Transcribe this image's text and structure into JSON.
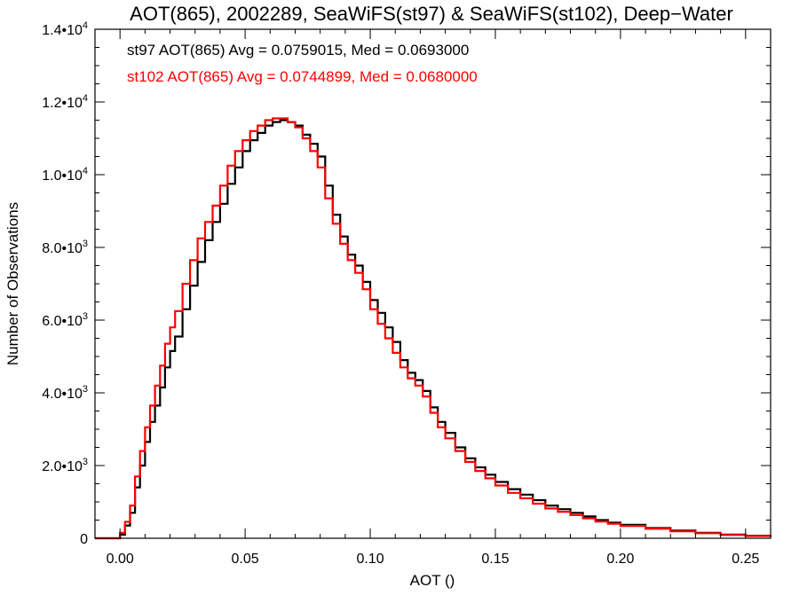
{
  "chart_data": {
    "type": "line",
    "title": "AOT(865), 2002289, SeaWiFS(st97) & SeaWiFS(st102), Deep−Water",
    "xlabel": "AOT ()",
    "ylabel": "Number of Observations",
    "xlim": [
      -0.01,
      0.26
    ],
    "ylim": [
      0,
      14000
    ],
    "grid": false,
    "x_ticks": [
      {
        "value": 0.0,
        "label": "0.00"
      },
      {
        "value": 0.05,
        "label": "0.05"
      },
      {
        "value": 0.1,
        "label": "0.10"
      },
      {
        "value": 0.15,
        "label": "0.15"
      },
      {
        "value": 0.2,
        "label": "0.20"
      },
      {
        "value": 0.25,
        "label": "0.25"
      }
    ],
    "y_ticks": [
      {
        "value": 0,
        "label": "0",
        "exp": ""
      },
      {
        "value": 2000,
        "label": "2.0•1",
        "exp": "3"
      },
      {
        "value": 4000,
        "label": "4.0•1",
        "exp": "3"
      },
      {
        "value": 6000,
        "label": "6.0•1",
        "exp": "3"
      },
      {
        "value": 8000,
        "label": "8.0•1",
        "exp": "3"
      },
      {
        "value": 10000,
        "label": "1.0•1",
        "exp": "4"
      },
      {
        "value": 12000,
        "label": "1.2•1",
        "exp": "4"
      },
      {
        "value": 14000,
        "label": "1.4•1",
        "exp": "4"
      }
    ],
    "series": [
      {
        "color": "#000000",
        "annotation": "st97 AOT(865) Avg = 0.0759015, Med = 0.0693000",
        "x": [
          -0.01,
          -0.001,
          0.0,
          0.002,
          0.004,
          0.006,
          0.008,
          0.01,
          0.012,
          0.014,
          0.016,
          0.018,
          0.02,
          0.022,
          0.025,
          0.028,
          0.031,
          0.034,
          0.037,
          0.04,
          0.043,
          0.046,
          0.049,
          0.052,
          0.055,
          0.058,
          0.061,
          0.064,
          0.067,
          0.07,
          0.073,
          0.076,
          0.079,
          0.082,
          0.085,
          0.088,
          0.091,
          0.094,
          0.097,
          0.1,
          0.103,
          0.106,
          0.109,
          0.112,
          0.115,
          0.118,
          0.121,
          0.124,
          0.127,
          0.13,
          0.134,
          0.138,
          0.142,
          0.146,
          0.15,
          0.155,
          0.16,
          0.165,
          0.17,
          0.175,
          0.18,
          0.185,
          0.19,
          0.195,
          0.2,
          0.21,
          0.22,
          0.23,
          0.24,
          0.25,
          0.26
        ],
        "y": [
          0,
          0,
          100,
          350,
          700,
          1400,
          2000,
          2650,
          3200,
          3650,
          4150,
          4700,
          5150,
          5550,
          6300,
          6950,
          7600,
          8200,
          8700,
          9200,
          9750,
          10200,
          10650,
          10950,
          11150,
          11350,
          11450,
          11500,
          11450,
          11350,
          11100,
          10850,
          10500,
          9700,
          8900,
          8300,
          7800,
          7500,
          7050,
          6550,
          6200,
          5800,
          5400,
          4900,
          4550,
          4350,
          4050,
          3600,
          3200,
          2900,
          2500,
          2200,
          1950,
          1750,
          1550,
          1350,
          1200,
          1050,
          900,
          800,
          700,
          600,
          500,
          430,
          370,
          280,
          210,
          150,
          100,
          70,
          40
        ]
      },
      {
        "color": "#ff0000",
        "annotation": "st102 AOT(865) Avg = 0.0744899, Med = 0.0680000",
        "x": [
          -0.01,
          -0.001,
          0.0,
          0.002,
          0.004,
          0.006,
          0.008,
          0.01,
          0.012,
          0.014,
          0.016,
          0.018,
          0.02,
          0.022,
          0.025,
          0.028,
          0.031,
          0.034,
          0.037,
          0.04,
          0.043,
          0.046,
          0.049,
          0.052,
          0.055,
          0.058,
          0.061,
          0.064,
          0.067,
          0.07,
          0.073,
          0.076,
          0.079,
          0.082,
          0.085,
          0.088,
          0.091,
          0.094,
          0.097,
          0.1,
          0.103,
          0.106,
          0.109,
          0.112,
          0.115,
          0.118,
          0.121,
          0.124,
          0.127,
          0.13,
          0.134,
          0.138,
          0.142,
          0.146,
          0.15,
          0.155,
          0.16,
          0.165,
          0.17,
          0.175,
          0.18,
          0.185,
          0.19,
          0.195,
          0.2,
          0.21,
          0.22,
          0.23,
          0.24,
          0.25,
          0.26
        ],
        "y": [
          0,
          0,
          150,
          450,
          900,
          1700,
          2400,
          3050,
          3650,
          4200,
          4750,
          5350,
          5800,
          6250,
          7000,
          7650,
          8250,
          8700,
          9150,
          9700,
          10250,
          10650,
          10950,
          11200,
          11350,
          11500,
          11550,
          11550,
          11450,
          11300,
          11000,
          10650,
          10200,
          9350,
          8650,
          8100,
          7650,
          7300,
          6850,
          6300,
          5900,
          5500,
          5100,
          4700,
          4400,
          4200,
          3900,
          3450,
          3050,
          2750,
          2400,
          2100,
          1850,
          1650,
          1450,
          1250,
          1100,
          950,
          820,
          730,
          640,
          550,
          460,
          400,
          340,
          260,
          190,
          140,
          90,
          60,
          30
        ]
      }
    ]
  }
}
